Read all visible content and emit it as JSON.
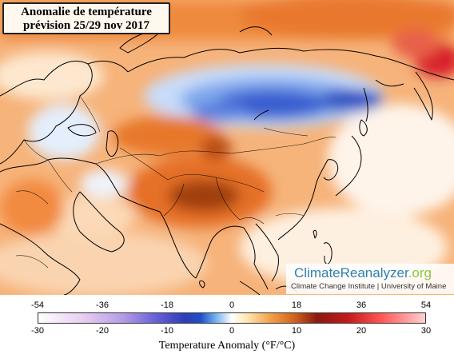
{
  "title": {
    "line1": "Anomalie de température",
    "line2": "prévision 25/29 nov 2017"
  },
  "branding": {
    "name_main": "ClimateReanalyzer",
    "name_suffix": ".org",
    "subtitle": "Climate Change Institute | University of Maine"
  },
  "legend": {
    "fahrenheit_ticks": [
      "-54",
      "-36",
      "-18",
      "0",
      "18",
      "36",
      "54"
    ],
    "celsius_ticks": [
      "-30",
      "-20",
      "-10",
      "0",
      "10",
      "20",
      "30"
    ],
    "title": "Temperature Anomaly (°F/°C)"
  },
  "colors": {
    "cold_strong": "#1f3fb0",
    "cold_light": "#cfe3ff",
    "warm_light": "#fbd9a8",
    "warm": "#ef8a3a",
    "warm_strong": "#9a3512",
    "hot_red": "#e0202a",
    "land_border": "#000000"
  }
}
